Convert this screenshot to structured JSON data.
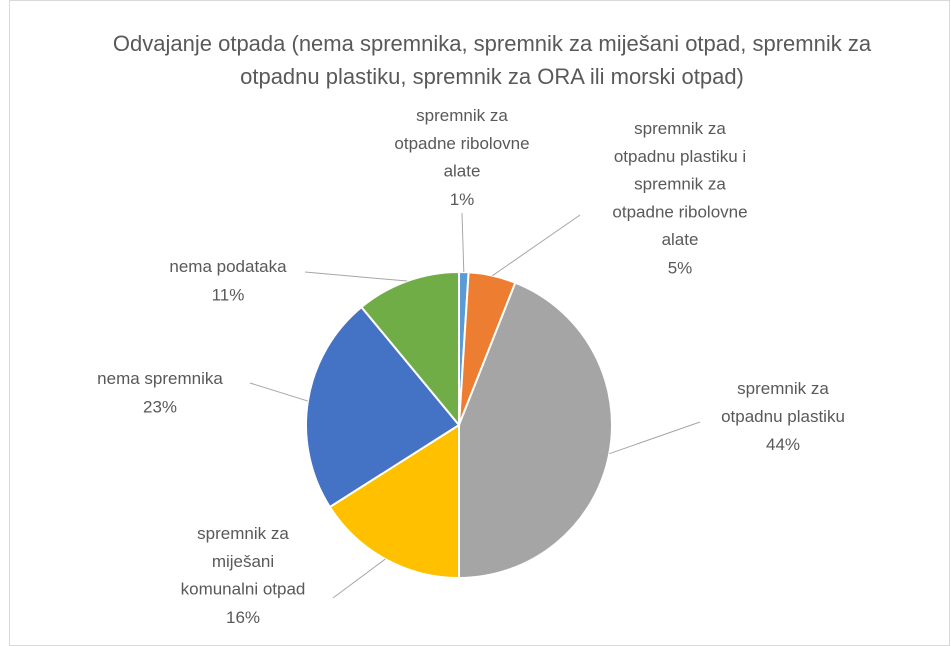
{
  "chart_data": {
    "type": "pie",
    "title": "Odvajanje otpada (nema spremnika, spremnik za miješani otpad, spremnik za otpadnu plastiku, spremnik za ORA ili morski otpad)",
    "categories": [
      "spremnik za otpadne ribolovne alate",
      "spremnik za otpadnu plastiku i spremnik za otpadne ribolovne alate",
      "spremnik za otpadnu plastiku",
      "spremnik za miješani komunalni otpad",
      "nema spremnika",
      "nema podataka"
    ],
    "values": [
      1,
      5,
      44,
      16,
      23,
      11
    ],
    "value_labels": [
      "1%",
      "5%",
      "44%",
      "16%",
      "23%",
      "11%"
    ],
    "colors": [
      "#5b9bd5",
      "#ed7d31",
      "#a5a5a5",
      "#ffc000",
      "#4472c4",
      "#70ad47"
    ]
  }
}
